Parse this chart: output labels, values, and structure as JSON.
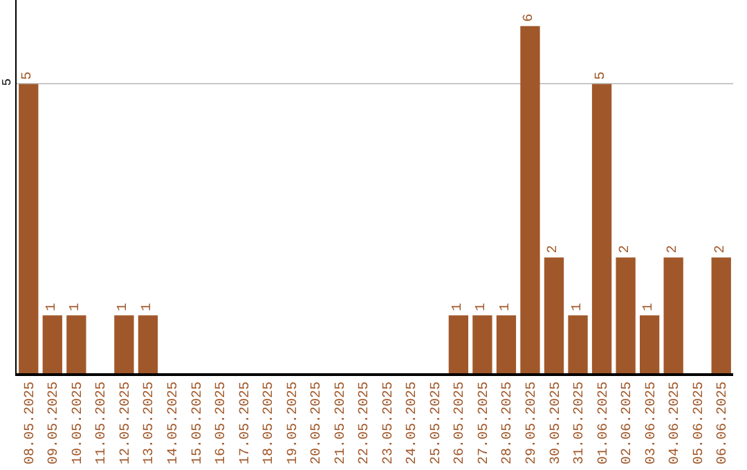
{
  "chart_data": {
    "type": "bar",
    "categories": [
      "08.05.2025",
      "09.05.2025",
      "10.05.2025",
      "11.05.2025",
      "12.05.2025",
      "13.05.2025",
      "14.05.2025",
      "15.05.2025",
      "16.05.2025",
      "17.05.2025",
      "18.05.2025",
      "19.05.2025",
      "20.05.2025",
      "21.05.2025",
      "22.05.2025",
      "23.05.2025",
      "24.05.2025",
      "25.05.2025",
      "26.05.2025",
      "27.05.2025",
      "28.05.2025",
      "29.05.2025",
      "30.05.2025",
      "31.05.2025",
      "01.06.2025",
      "02.06.2025",
      "03.06.2025",
      "04.06.2025",
      "05.06.2025",
      "06.06.2025"
    ],
    "values": [
      5,
      1,
      1,
      0,
      1,
      1,
      0,
      0,
      0,
      0,
      0,
      0,
      0,
      0,
      0,
      0,
      0,
      0,
      1,
      1,
      1,
      6,
      2,
      1,
      5,
      2,
      1,
      2,
      0,
      2
    ],
    "value_labels": [
      "5",
      "1",
      "1",
      null,
      "1",
      "1",
      null,
      null,
      null,
      null,
      null,
      null,
      null,
      null,
      null,
      null,
      null,
      null,
      "1",
      "1",
      "1",
      "6",
      "2",
      "1",
      "5",
      "2",
      "1",
      "2",
      null,
      "2"
    ],
    "color": "#a0582a",
    "ylim": [
      0,
      6.45
    ],
    "yticks": [
      5
    ],
    "grid": "y"
  }
}
